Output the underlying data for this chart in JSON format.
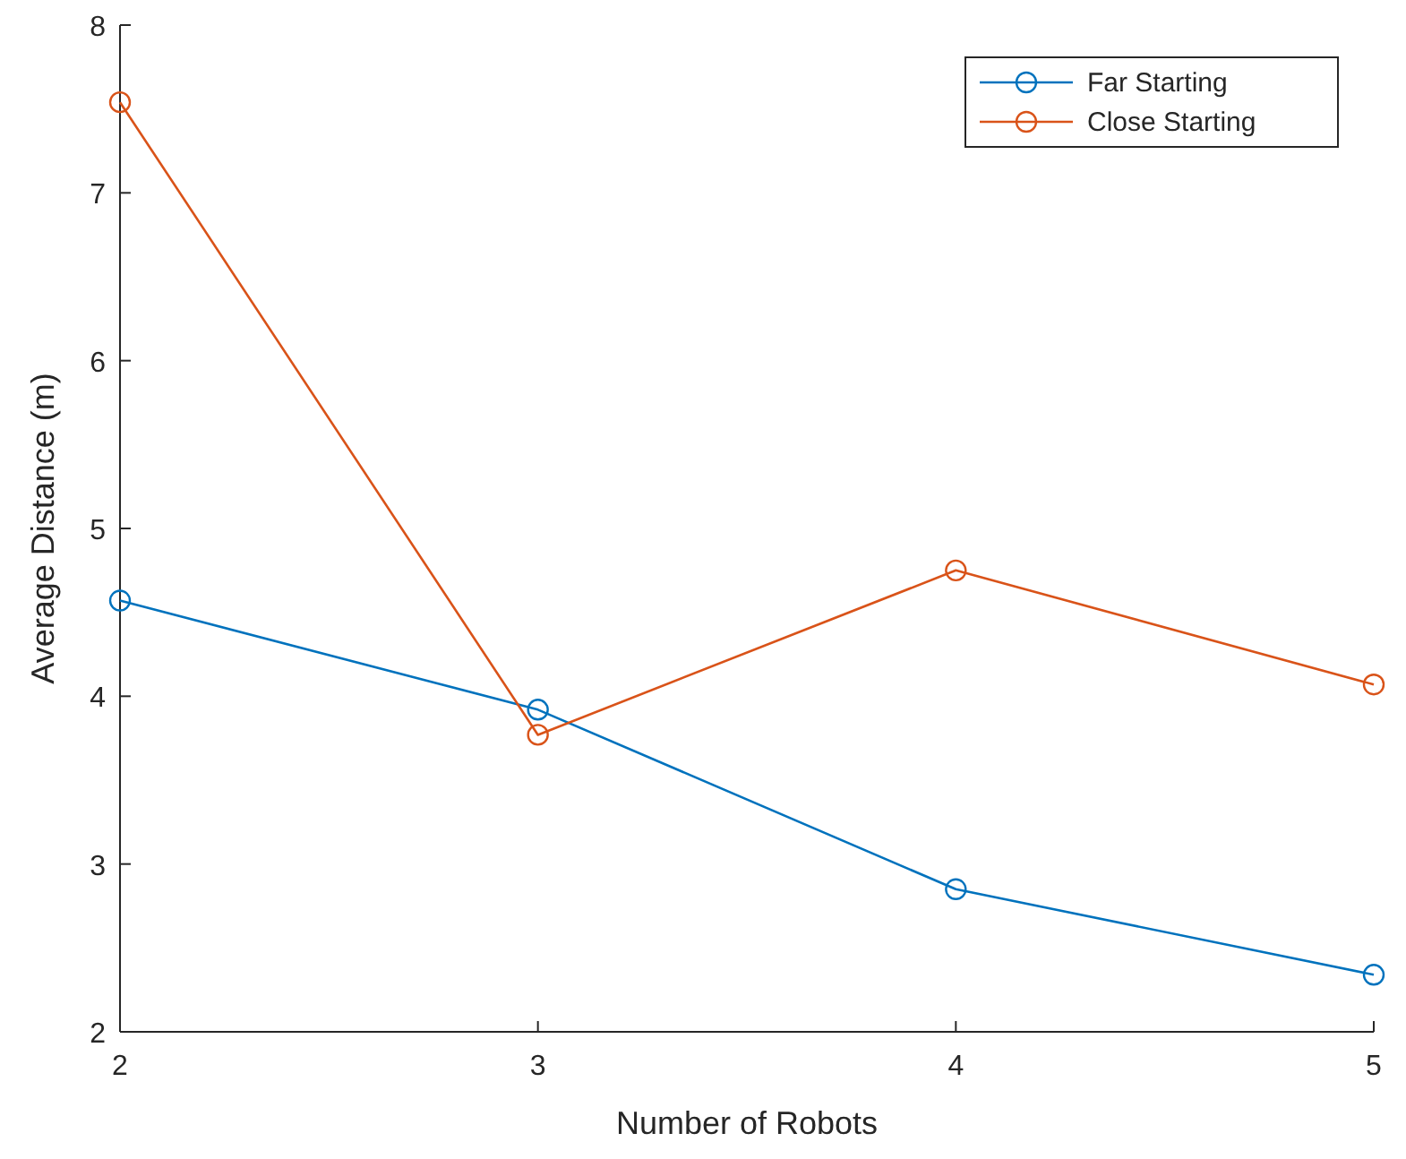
{
  "chart_data": {
    "type": "line",
    "xlabel": "Number of Robots",
    "ylabel": "Average Distance (m)",
    "x": [
      2,
      3,
      4,
      5
    ],
    "xlim": [
      2,
      5
    ],
    "xticks": [
      2,
      3,
      4,
      5
    ],
    "ylim": [
      2,
      8
    ],
    "yticks": [
      2,
      3,
      4,
      5,
      6,
      7,
      8
    ],
    "grid": false,
    "legend": "top right",
    "marker": "circle",
    "line_style": "solid",
    "series": [
      {
        "name": "Far Starting",
        "color": "#0072bd",
        "values": [
          4.57,
          3.92,
          2.85,
          2.34
        ]
      },
      {
        "name": "Close Starting",
        "color": "#d95319",
        "values": [
          7.54,
          3.77,
          4.75,
          4.07
        ]
      }
    ]
  }
}
